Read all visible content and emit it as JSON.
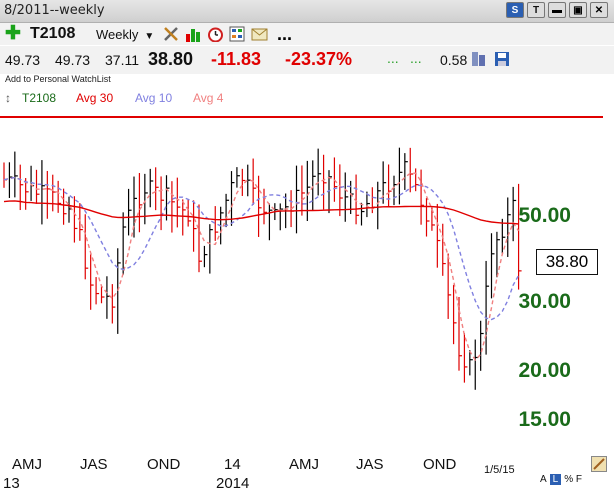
{
  "window": {
    "title": "8/2011--weekly"
  },
  "titlebar_buttons": [
    "S",
    "T"
  ],
  "toolbar": {
    "add_icon": "plus-icon",
    "symbol": "T2108",
    "period": "Weekly",
    "icons": [
      "tools-icon",
      "bar-chart-icon",
      "clock-icon",
      "grid-calculator-icon",
      "envelope-icon"
    ],
    "more": "..."
  },
  "quote": {
    "open": "49.73",
    "high": "49.73",
    "low": "37.11",
    "last": "38.80",
    "change": "-11.83",
    "change_pct": "-23.37%",
    "dots1": "...",
    "dots2": "...",
    "value": "0.58"
  },
  "watchlist_label": "Add to Personal WatchList",
  "legend": {
    "symbol": "T2108",
    "avg30": "Avg 30",
    "avg10": "Avg 10",
    "avg4": "Avg 4"
  },
  "colors": {
    "up": "#000000",
    "down": "#e00000",
    "avg30": "#e00000",
    "avg10": "#8080e0",
    "avg4": "#f08080",
    "axis": "#1a6b1a"
  },
  "chart_data": {
    "type": "bar",
    "y_ticks": [
      "50.00",
      "30.00",
      "20.00",
      "15.00"
    ],
    "last_price": "38.80",
    "x_ticks": [
      "AMJ",
      "JAS",
      "OND",
      "14",
      "AMJ",
      "JAS",
      "OND"
    ],
    "year_labels": [
      "13",
      "2014"
    ],
    "end_date": "1/5/15"
  },
  "bottom_controls": {
    "a": "A",
    "l": "L",
    "pct": "%",
    "f": "F"
  }
}
